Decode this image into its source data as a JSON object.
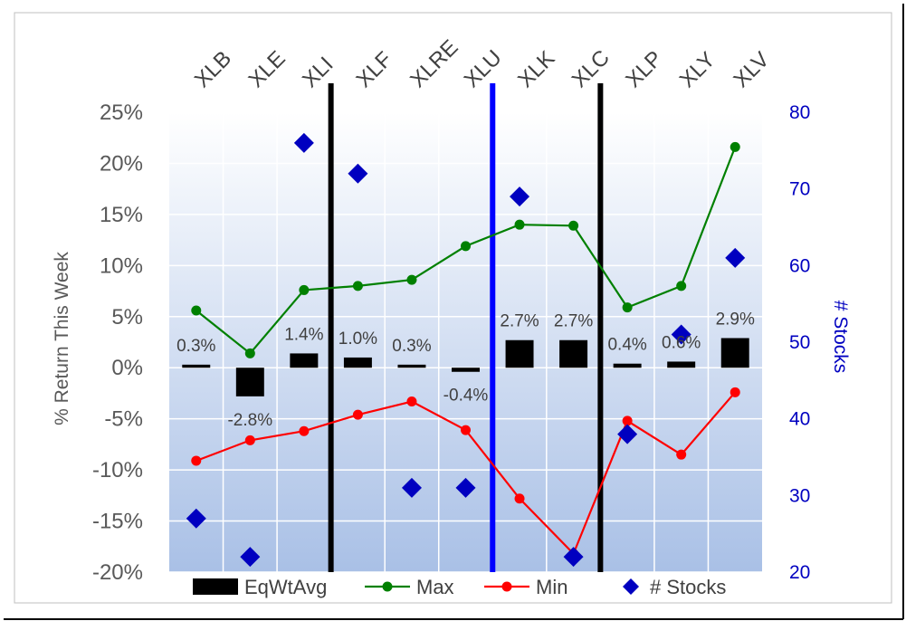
{
  "chart_data": {
    "type": "bar",
    "categories": [
      "XLB",
      "XLE",
      "XLI",
      "XLF",
      "XLRE",
      "XLU",
      "XLK",
      "XLC",
      "XLP",
      "XLY",
      "XLV"
    ],
    "series": [
      {
        "name": "EqWtAvg",
        "kind": "bar",
        "axis": "left",
        "color": "#000000",
        "values": [
          0.3,
          -2.8,
          1.4,
          1.0,
          0.3,
          -0.4,
          2.7,
          2.7,
          0.4,
          0.6,
          2.9
        ],
        "labels": [
          "0.3%",
          "-2.8%",
          "1.4%",
          "1.0%",
          "0.3%",
          "-0.4%",
          "2.7%",
          "2.7%",
          "0.4%",
          "0.6%",
          "2.9%"
        ]
      },
      {
        "name": "Max",
        "kind": "line",
        "axis": "left",
        "color": "#008000",
        "values": [
          5.6,
          1.4,
          7.6,
          8.0,
          8.6,
          11.9,
          14.0,
          13.9,
          5.9,
          8.0,
          21.6
        ]
      },
      {
        "name": "Min",
        "kind": "line",
        "axis": "left",
        "color": "#ff0000",
        "values": [
          -9.1,
          -7.1,
          -6.2,
          -4.6,
          -3.3,
          -6.1,
          -12.8,
          -18.2,
          -5.2,
          -8.5,
          -2.4
        ]
      },
      {
        "name": "# Stocks",
        "kind": "scatter",
        "axis": "right",
        "color": "#0000c0",
        "values": [
          27,
          22,
          76,
          72,
          31,
          31,
          69,
          22,
          38,
          51,
          61
        ]
      }
    ],
    "ylabel": "% Return This Week",
    "y2label": "# Stocks",
    "ylim": [
      -20,
      25
    ],
    "y2lim": [
      20,
      80
    ],
    "yticks": [
      "25%",
      "20%",
      "15%",
      "10%",
      "5%",
      "0%",
      "-5%",
      "-10%",
      "-15%",
      "-20%"
    ],
    "y2ticks": [
      "80",
      "70",
      "60",
      "50",
      "40",
      "30",
      "20"
    ],
    "separators": [
      {
        "after_category": "XLI",
        "color": "#000000"
      },
      {
        "after_category": "XLU",
        "color": "#0000ff"
      },
      {
        "after_category": "XLC",
        "color": "#000000"
      }
    ],
    "legend_position": "bottom",
    "grid": true
  }
}
